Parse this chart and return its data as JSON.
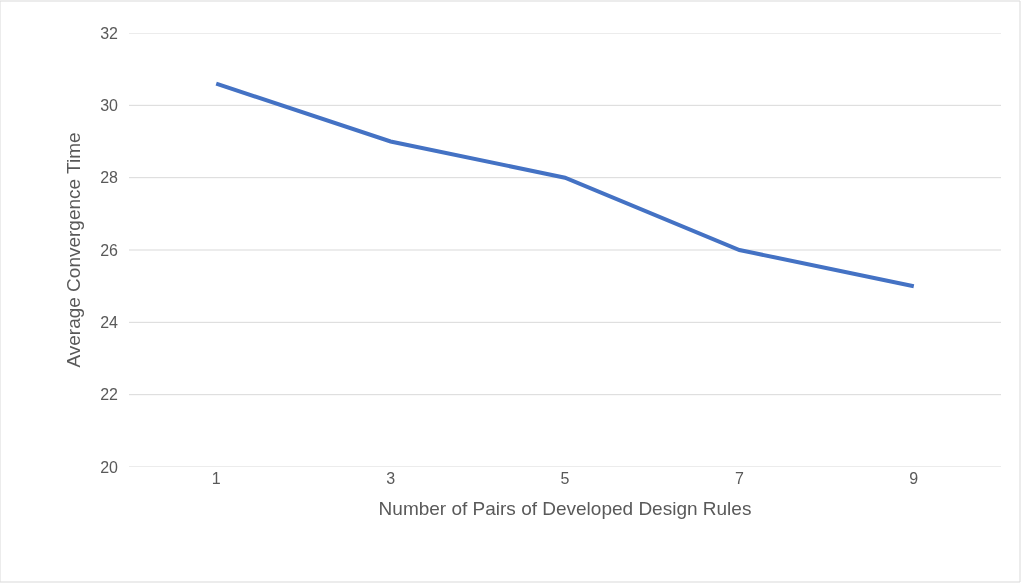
{
  "chart_data": {
    "type": "line",
    "xlabel": "Number of Pairs of Developed Design Rules",
    "ylabel": "Average Convergence Time",
    "categories": [
      "1",
      "3",
      "5",
      "7",
      "9"
    ],
    "series": [
      {
        "color": "#4472c4",
        "values": [
          30.6,
          29,
          28,
          26,
          25
        ]
      }
    ],
    "ylim": [
      20,
      32
    ],
    "yticks": [
      20,
      22,
      24,
      26,
      28,
      30,
      32
    ],
    "grid": "y",
    "marker": "none",
    "line_style": "solid"
  }
}
